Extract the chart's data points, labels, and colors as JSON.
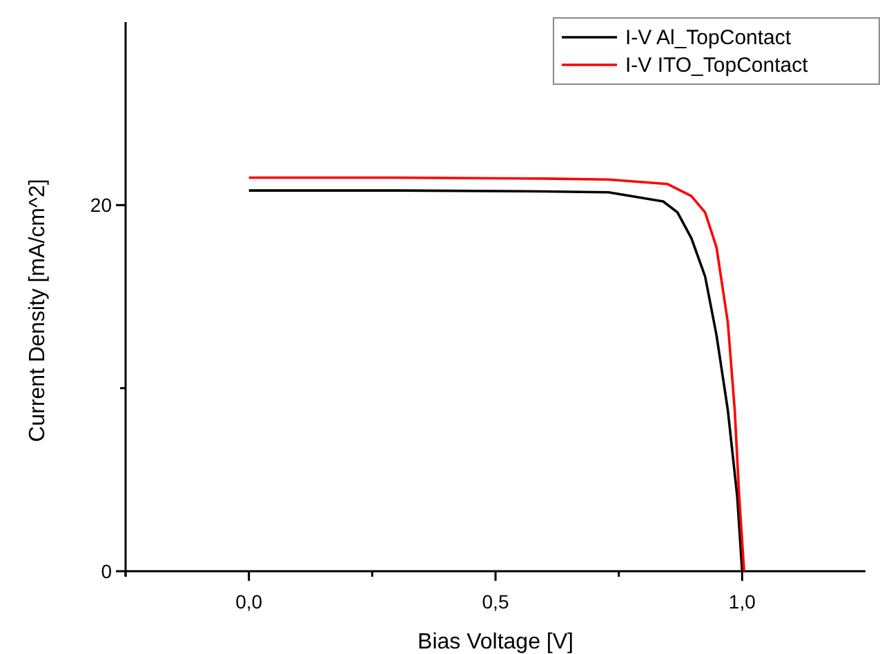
{
  "chart_data": {
    "type": "line",
    "xlabel": "Bias Voltage [V]",
    "ylabel": "Current Density [mA/cm^2]",
    "xlim": [
      -0.25,
      1.25
    ],
    "xticks": [
      {
        "value": -0.25,
        "label": null
      },
      {
        "value": 0,
        "label": "0,0"
      },
      {
        "value": 0.25,
        "label": null
      },
      {
        "value": 0.5,
        "label": "0,5"
      },
      {
        "value": 0.75,
        "label": null
      },
      {
        "value": 1,
        "label": "1,0"
      }
    ],
    "ylim": [
      0,
      30
    ],
    "yticks": [
      0,
      {
        "value": 10,
        "label": null
      },
      20
    ],
    "legend": "top right",
    "grid": false,
    "series": [
      {
        "name": "I-V Al_TopContact",
        "color": "#000000",
        "x": [
          0,
          0.3,
          0.6,
          0.729,
          0.84,
          0.869,
          0.897,
          0.925,
          0.948,
          0.971,
          0.99,
          1.0
        ],
        "values": [
          20.8,
          20.8,
          20.75,
          20.7,
          20.2,
          19.6,
          18.2,
          16.1,
          12.9,
          8.8,
          4.1,
          0
        ]
      },
      {
        "name": "I-V ITO_TopContact",
        "color": "#ff0000",
        "x": [
          0,
          0.3,
          0.6,
          0.729,
          0.849,
          0.897,
          0.925,
          0.948,
          0.971,
          0.985,
          0.994,
          1.004
        ],
        "values": [
          21.5,
          21.5,
          21.45,
          21.4,
          21.15,
          20.5,
          19.6,
          17.7,
          13.6,
          8.8,
          4.1,
          0
        ]
      }
    ]
  }
}
